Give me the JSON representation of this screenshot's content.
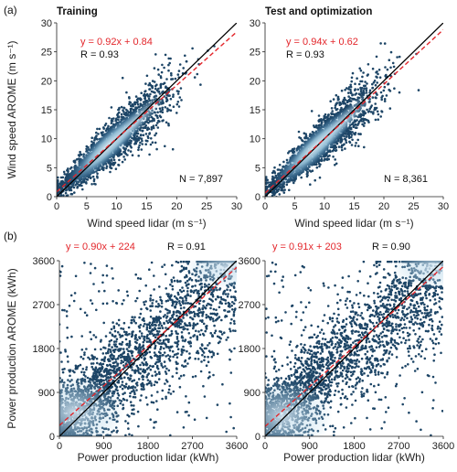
{
  "colors": {
    "point_dark": "#1d4566",
    "density_light": "#9ecae1",
    "density_core": "#e8f3fb",
    "fit_line": "#e3262b",
    "identity_line": "#000000"
  },
  "panel_labels": [
    "(a)",
    "(b)"
  ],
  "chart_data": [
    {
      "type": "scatter",
      "panel": "(a)",
      "title": "Training",
      "xlabel": "Wind speed lidar (m s⁻¹)",
      "ylabel": "Wind speed AROME (m s⁻¹)",
      "xlim": [
        0,
        30
      ],
      "ylim": [
        0,
        30
      ],
      "xticks": [
        0,
        5,
        10,
        15,
        20,
        25,
        30
      ],
      "yticks": [
        0,
        5,
        10,
        15,
        20,
        25,
        30
      ],
      "regression_label": "y = 0.92x + 0.84",
      "slope": 0.92,
      "intercept": 0.84,
      "r_label": "R = 0.93",
      "n_label": "N = 7,897",
      "identity_line": true,
      "cloud": {
        "x_range": [
          0.3,
          27
        ],
        "spread": 2.2
      }
    },
    {
      "type": "scatter",
      "panel": "(a)",
      "title": "Test and optimization",
      "xlabel": "Wind speed lidar (m s⁻¹)",
      "ylabel": "",
      "xlim": [
        0,
        30
      ],
      "ylim": [
        0,
        30
      ],
      "xticks": [
        0,
        5,
        10,
        15,
        20,
        25,
        30
      ],
      "yticks": [
        0,
        5,
        10,
        15,
        20,
        25,
        30
      ],
      "regression_label": "y = 0.94x + 0.62",
      "slope": 0.94,
      "intercept": 0.62,
      "r_label": "R = 0.93",
      "n_label": "N = 8,361",
      "identity_line": true,
      "cloud": {
        "x_range": [
          0.3,
          26
        ],
        "spread": 2.2
      }
    },
    {
      "type": "scatter",
      "panel": "(b)",
      "title": "",
      "xlabel": "Power production lidar (kWh)",
      "ylabel": "Power production AROME (kWh)",
      "xlim": [
        0,
        3600
      ],
      "ylim": [
        0,
        3600
      ],
      "xticks": [
        0,
        900,
        1800,
        2700,
        3600
      ],
      "yticks": [
        0,
        900,
        1800,
        2700,
        3600
      ],
      "regression_label": "y = 0.90x + 224",
      "slope": 0.9,
      "intercept": 224,
      "r_label": "R = 0.91",
      "n_label": "",
      "identity_line": true,
      "cloud": {
        "x_range": [
          0,
          3600
        ],
        "spread": 650
      }
    },
    {
      "type": "scatter",
      "panel": "(b)",
      "title": "",
      "xlabel": "Power production lidar (kWh)",
      "ylabel": "",
      "xlim": [
        0,
        3600
      ],
      "ylim": [
        0,
        3600
      ],
      "xticks": [
        0,
        900,
        1800,
        2700,
        3600
      ],
      "yticks": [
        0,
        900,
        1800,
        2700,
        3600
      ],
      "regression_label": "y = 0.91x + 203",
      "slope": 0.91,
      "intercept": 203,
      "r_label": "R = 0.90",
      "n_label": "",
      "identity_line": true,
      "cloud": {
        "x_range": [
          0,
          3600
        ],
        "spread": 650
      }
    }
  ]
}
